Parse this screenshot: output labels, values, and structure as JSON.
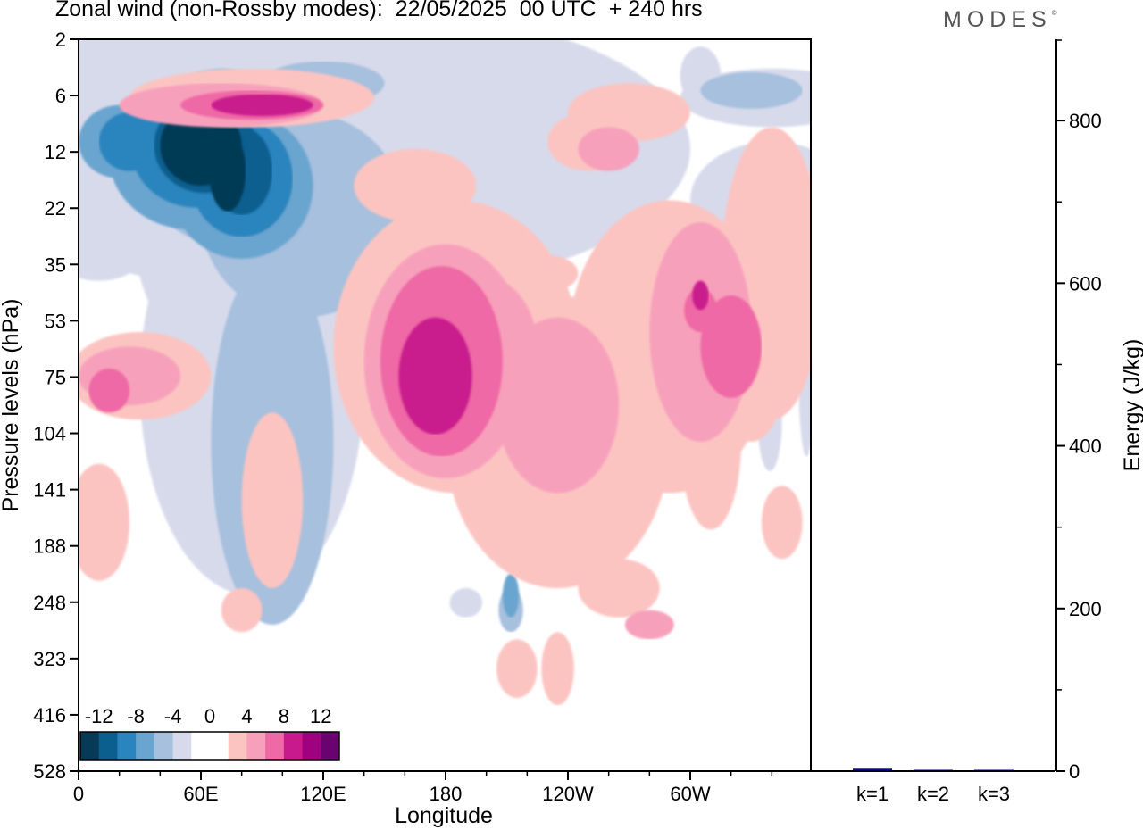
{
  "header": {
    "title": "Zonal wind (non-Rossby modes):  22/05/2025  00 UTC  + 240 hrs",
    "brand": "MODES",
    "brand_mark": "©"
  },
  "chart_data": [
    {
      "type": "heatmap",
      "subtype": "filled-contour",
      "title": "Zonal wind (non-Rossby modes):  22/05/2025  00 UTC  + 240 hrs",
      "xlabel": "Longitude",
      "ylabel": "Pressure levels (hPa)",
      "x_ticks": [
        "0",
        "60E",
        "120E",
        "180",
        "120W",
        "60W"
      ],
      "y_ticks": [
        "2",
        "6",
        "12",
        "22",
        "35",
        "53",
        "75",
        "104",
        "141",
        "188",
        "248",
        "323",
        "416",
        "528"
      ],
      "y_scale": "model levels (nonlinear)",
      "xlim": [
        "0",
        "360"
      ],
      "colorbar": {
        "labels": [
          "-12",
          "-8",
          "-4",
          "0",
          "4",
          "8",
          "12"
        ],
        "colors": [
          "#063a57",
          "#0b5f8f",
          "#2a84bd",
          "#6aa5cf",
          "#a6c0de",
          "#d7daeb",
          "#ffffff",
          "#ffffff",
          "#fbc4c1",
          "#f7a0bb",
          "#ee69a5",
          "#c91a8d",
          "#a0017e",
          "#6a0370"
        ]
      },
      "fields": [
        {
          "v": -4,
          "c": "#d7daeb",
          "blobs": [
            [
              120,
              0.15,
              180,
              0.2
            ],
            [
              85,
              0.22,
              60,
              0.26
            ],
            [
              340,
              0.22,
              40,
              0.08
            ],
            [
              10,
              0.3,
              20,
              0.03
            ],
            [
              85,
              0.47,
              55,
              0.29
            ],
            [
              90,
              0.14,
              3,
              0.07
            ],
            [
              115,
              0.16,
              10,
              0.04
            ],
            [
              340,
              0.08,
              45,
              0.04
            ],
            [
              305,
              0.05,
              10,
              0.04
            ],
            [
              210,
              0.2,
              15,
              0.06
            ],
            [
              275,
              0.36,
              15,
              0.055
            ],
            [
              339,
              0.52,
              6,
              0.07
            ],
            [
              357,
              0.45,
              4,
              0.12
            ],
            [
              190,
              0.77,
              8,
              0.02
            ]
          ]
        },
        {
          "v": -6,
          "c": "#a6c0de",
          "blobs": [
            [
              110,
              0.24,
              50,
              0.14
            ],
            [
              95,
              0.55,
              30,
              0.25
            ],
            [
              70,
              0.16,
              40,
              0.12
            ],
            [
              330,
              0.07,
              25,
              0.025
            ],
            [
              120,
              0.06,
              30,
              0.03
            ],
            [
              212,
              0.78,
              6,
              0.03
            ],
            [
              340,
              0.2,
              6,
              0.025
            ]
          ]
        },
        {
          "v": -8,
          "c": "#6aa5cf",
          "blobs": [
            [
              55,
              0.16,
              40,
              0.1
            ],
            [
              80,
              0.2,
              35,
              0.1
            ],
            [
              20,
              0.14,
              20,
              0.05
            ],
            [
              212,
              0.76,
              4,
              0.03
            ],
            [
              335,
              0.31,
              3,
              0.03
            ]
          ]
        },
        {
          "v": -10,
          "c": "#2a84bd",
          "blobs": [
            [
              58,
              0.15,
              32,
              0.08
            ],
            [
              25,
              0.14,
              15,
              0.04
            ],
            [
              80,
              0.19,
              25,
              0.08
            ]
          ]
        },
        {
          "v": -12,
          "c": "#0b5f8f",
          "blobs": [
            [
              62,
              0.145,
              25,
              0.065
            ],
            [
              80,
              0.18,
              15,
              0.06
            ]
          ]
        },
        {
          "v": -14,
          "c": "#063a57",
          "blobs": [
            [
              60,
              0.145,
              20,
              0.055
            ],
            [
              73,
              0.18,
              9,
              0.055
            ]
          ]
        },
        {
          "v": 4,
          "c": "#fbc4c1",
          "blobs": [
            [
              185,
              0.42,
              60,
              0.2
            ],
            [
              235,
              0.55,
              55,
              0.2
            ],
            [
              290,
              0.42,
              50,
              0.2
            ],
            [
              340,
              0.32,
              25,
              0.2
            ],
            [
              30,
              0.46,
              35,
              0.06
            ],
            [
              85,
              0.08,
              60,
              0.04
            ],
            [
              165,
              0.2,
              30,
              0.05
            ],
            [
              270,
              0.1,
              30,
              0.04
            ],
            [
              265,
              0.75,
              20,
              0.04
            ],
            [
              250,
              0.14,
              20,
              0.04
            ],
            [
              230,
              0.32,
              15,
              0.025
            ],
            [
              330,
              0.4,
              20,
              0.15
            ],
            [
              310,
              0.55,
              15,
              0.12
            ],
            [
              10,
              0.66,
              15,
              0.08
            ],
            [
              95,
              0.63,
              15,
              0.12
            ],
            [
              235,
              0.86,
              8,
              0.05
            ],
            [
              215,
              0.86,
              10,
              0.04
            ],
            [
              80,
              0.78,
              10,
              0.03
            ],
            [
              345,
              0.66,
              10,
              0.05
            ]
          ]
        },
        {
          "v": 6,
          "c": "#f7a0bb",
          "blobs": [
            [
              180,
              0.44,
              40,
              0.16
            ],
            [
              235,
              0.5,
              30,
              0.12
            ],
            [
              305,
              0.4,
              25,
              0.15
            ],
            [
              70,
              0.09,
              50,
              0.03
            ],
            [
              25,
              0.46,
              25,
              0.04
            ],
            [
              195,
              0.42,
              30,
              0.1
            ],
            [
              260,
              0.15,
              15,
              0.03
            ],
            [
              280,
              0.8,
              12,
              0.02
            ]
          ]
        },
        {
          "v": 8,
          "c": "#ee69a5",
          "blobs": [
            [
              178,
              0.44,
              30,
              0.13
            ],
            [
              320,
              0.42,
              15,
              0.07
            ],
            [
              85,
              0.09,
              35,
              0.02
            ],
            [
              15,
              0.48,
              10,
              0.03
            ],
            [
              305,
              0.37,
              8,
              0.03
            ]
          ]
        },
        {
          "v": 10,
          "c": "#c91a8d",
          "blobs": [
            [
              175,
              0.46,
              18,
              0.08
            ],
            [
              90,
              0.09,
              25,
              0.015
            ],
            [
              305,
              0.35,
              4,
              0.02
            ]
          ]
        }
      ]
    },
    {
      "type": "bar",
      "categories": [
        "k=1",
        "k=2",
        "k=3"
      ],
      "values": [
        3,
        1,
        0.5
      ],
      "ylabel": "Energy (J/kg)",
      "ylim": [
        0,
        900
      ],
      "y_ticks": [
        0,
        200,
        400,
        600,
        800
      ],
      "color": "#0a0a8a"
    }
  ]
}
